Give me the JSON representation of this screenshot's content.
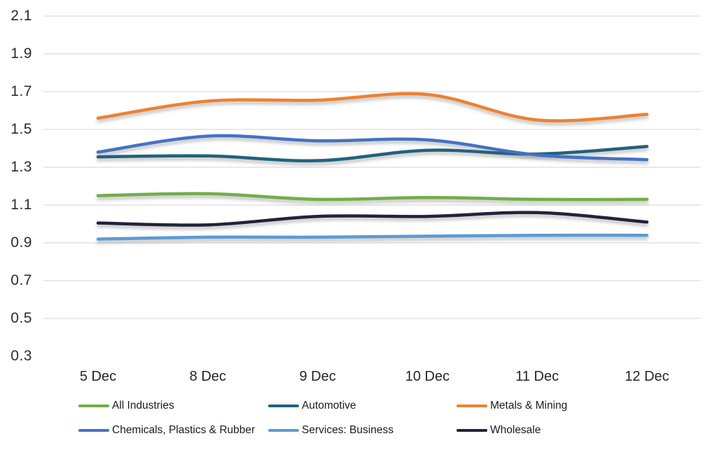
{
  "chart_data": {
    "type": "line",
    "title": "",
    "xlabel": "",
    "ylabel": "",
    "categories": [
      "5 Dec",
      "8 Dec",
      "9 Dec",
      "10 Dec",
      "11 Dec",
      "12 Dec"
    ],
    "series": [
      {
        "name": "All Industries",
        "color": "#71AE48",
        "values": [
          1.15,
          1.16,
          1.13,
          1.14,
          1.13,
          1.13
        ]
      },
      {
        "name": "Automotive",
        "color": "#20627D",
        "values": [
          1.355,
          1.36,
          1.335,
          1.39,
          1.37,
          1.41
        ]
      },
      {
        "name": "Metals & Mining",
        "color": "#EE8130",
        "values": [
          1.56,
          1.65,
          1.655,
          1.685,
          1.55,
          1.58
        ]
      },
      {
        "name": "Chemicals, Plastics & Rubber",
        "color": "#4472C4",
        "values": [
          1.38,
          1.465,
          1.44,
          1.445,
          1.365,
          1.34
        ]
      },
      {
        "name": "Services: Business",
        "color": "#5B9BD5",
        "values": [
          0.92,
          0.93,
          0.93,
          0.935,
          0.94,
          0.94
        ]
      },
      {
        "name": "Wholesale",
        "color": "#20243A",
        "values": [
          1.005,
          0.995,
          1.04,
          1.04,
          1.06,
          1.01
        ]
      }
    ],
    "ylim": [
      0.3,
      2.1
    ],
    "y_ticks": [
      2.1,
      1.9,
      1.7,
      1.5,
      1.3,
      1.1,
      0.9,
      0.7,
      0.5,
      0.3
    ],
    "gridlines_at": [
      2.1,
      1.9,
      1.7,
      1.5,
      1.3,
      1.1,
      0.9,
      0.7,
      0.5
    ],
    "grid": true,
    "legend_position": "bottom",
    "colors": {
      "gridline": "#E9E9E9",
      "tick_text": "#2D2D2D",
      "legend_text": "#1B1B1B",
      "background": "#FFFFFF"
    }
  }
}
